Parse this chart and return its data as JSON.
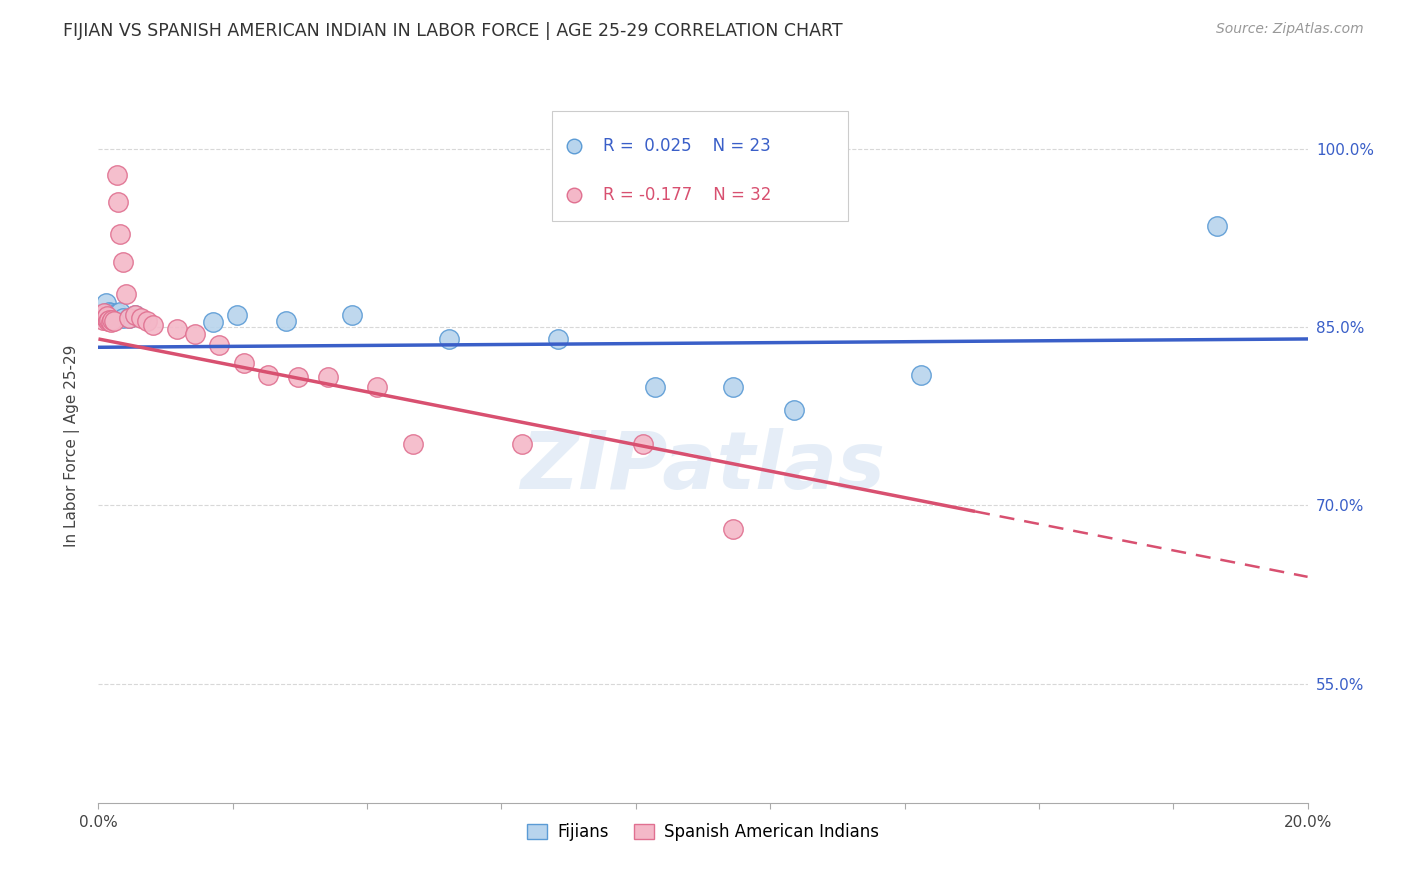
{
  "title": "FIJIAN VS SPANISH AMERICAN INDIAN IN LABOR FORCE | AGE 25-29 CORRELATION CHART",
  "source": "Source: ZipAtlas.com",
  "ylabel": "In Labor Force | Age 25-29",
  "xmin": 0.0,
  "xmax": 0.2,
  "ymin": 0.45,
  "ymax": 1.05,
  "ytick_labels": [
    "55.0%",
    "70.0%",
    "85.0%",
    "100.0%"
  ],
  "ytick_values": [
    0.55,
    0.7,
    0.85,
    1.0
  ],
  "xtick_values": [
    0.0,
    0.02222,
    0.04444,
    0.06667,
    0.08889,
    0.11111,
    0.13333,
    0.15556,
    0.17778,
    0.2
  ],
  "fijian_color": "#b8d4ed",
  "fijian_edge_color": "#5b9bd5",
  "spanish_color": "#f4b8c8",
  "spanish_edge_color": "#e07090",
  "fijian_R": 0.025,
  "fijian_N": 23,
  "spanish_R": -0.177,
  "spanish_N": 32,
  "fijian_trendline_color": "#3a5fc8",
  "spanish_trendline_color": "#d85070",
  "watermark": "ZIPatlas",
  "legend_label_1": "Fijians",
  "legend_label_2": "Spanish American Indians",
  "fijian_x": [
    0.0008,
    0.0012,
    0.0015,
    0.0018,
    0.002,
    0.0022,
    0.0025,
    0.003,
    0.0035,
    0.004,
    0.005,
    0.006,
    0.019,
    0.023,
    0.031,
    0.042,
    0.058,
    0.076,
    0.092,
    0.105,
    0.115,
    0.136,
    0.185
  ],
  "fijian_y": [
    0.862,
    0.87,
    0.858,
    0.863,
    0.862,
    0.857,
    0.86,
    0.862,
    0.863,
    0.858,
    0.858,
    0.86,
    0.854,
    0.86,
    0.855,
    0.86,
    0.84,
    0.84,
    0.8,
    0.8,
    0.78,
    0.81,
    0.935
  ],
  "spanish_x": [
    0.0005,
    0.0007,
    0.001,
    0.0012,
    0.0014,
    0.0016,
    0.0018,
    0.002,
    0.0022,
    0.0025,
    0.003,
    0.0032,
    0.0035,
    0.004,
    0.0045,
    0.005,
    0.006,
    0.007,
    0.008,
    0.009,
    0.013,
    0.016,
    0.02,
    0.024,
    0.028,
    0.033,
    0.038,
    0.046,
    0.052,
    0.07,
    0.09,
    0.105
  ],
  "spanish_y": [
    0.859,
    0.856,
    0.862,
    0.858,
    0.859,
    0.855,
    0.856,
    0.854,
    0.856,
    0.855,
    0.978,
    0.955,
    0.928,
    0.905,
    0.878,
    0.858,
    0.86,
    0.858,
    0.855,
    0.852,
    0.848,
    0.844,
    0.835,
    0.82,
    0.81,
    0.808,
    0.808,
    0.8,
    0.752,
    0.752,
    0.752,
    0.68
  ],
  "spanish_trendline_y_at_0": 0.84,
  "spanish_trendline_y_at_145": 0.695,
  "fijian_trendline_y_at_0": 0.833,
  "fijian_trendline_y_at_200": 0.84,
  "background_color": "#ffffff",
  "grid_color": "#d8d8d8",
  "right_axis_color": "#3a5fc8",
  "marker_size": 14
}
